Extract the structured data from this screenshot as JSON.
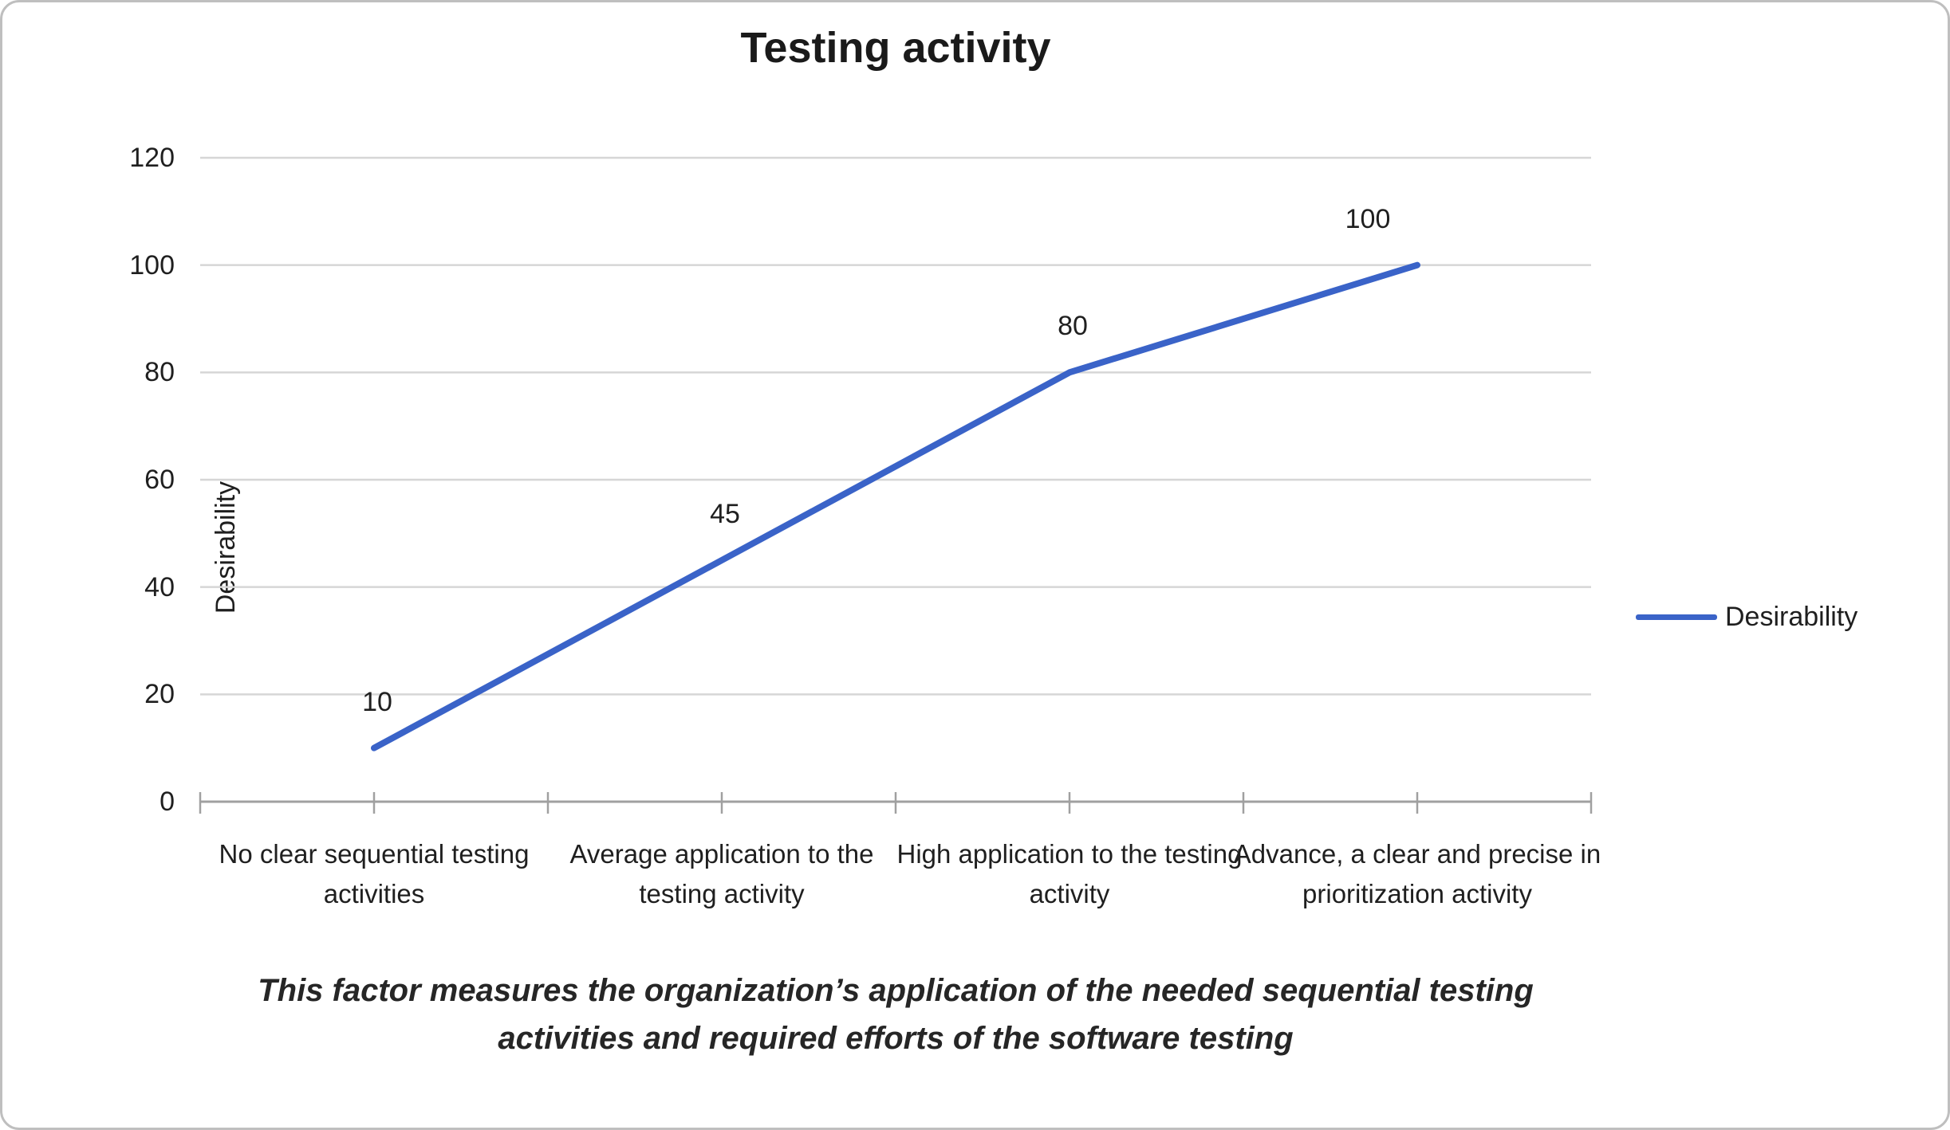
{
  "chart_data": {
    "type": "line",
    "title": "Testing activity",
    "categories": [
      "No clear sequential testing activities",
      "Average application to the testing activity",
      "High application to the testing activity",
      "Advance, a clear and precise in prioritization activity"
    ],
    "series": [
      {
        "name": "Desirability",
        "values": [
          10,
          45,
          80,
          100
        ]
      }
    ],
    "data_labels": [
      "10",
      "45",
      "80",
      "100"
    ],
    "xlabel": "",
    "ylabel": "Desirability",
    "ylim": [
      0,
      120
    ],
    "ytick_step": 20,
    "ytick_labels": [
      "0",
      "20",
      "40",
      "60",
      "80",
      "100",
      "120"
    ],
    "grid": true,
    "legend_position": "right",
    "colors": {
      "line": "#3a63c8",
      "gridline": "#d6d6d6",
      "axis": "#a0a0a0",
      "text": "#1f1f1f"
    }
  },
  "caption": {
    "lines": [
      "This factor measures the organization’s application of the needed sequential testing",
      "activities and required efforts of the software testing"
    ]
  }
}
